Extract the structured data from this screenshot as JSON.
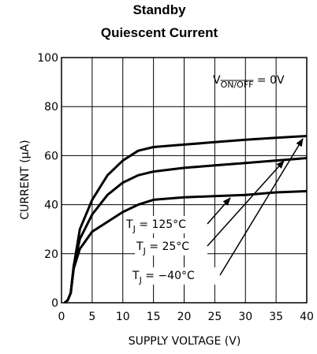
{
  "chart_data": {
    "type": "line",
    "title": [
      "Standby",
      "Quiescent Current"
    ],
    "xlabel": "SUPPLY VOLTAGE (V)",
    "ylabel": "CURRENT (µA)",
    "x": [
      0.5,
      1,
      1.5,
      2,
      3,
      5,
      7.5,
      10,
      12.5,
      15,
      20,
      25,
      30,
      35,
      40
    ],
    "series": [
      {
        "color": "#000000",
        "values": [
          0,
          1,
          4,
          15,
          30,
          42,
          52,
          58,
          62,
          63.5,
          64.5,
          65.5,
          66.5,
          67.3,
          68
        ]
      },
      {
        "color": "#000000",
        "values": [
          0,
          1,
          4,
          15,
          26,
          36,
          44,
          49,
          52,
          53.5,
          55,
          56,
          57,
          58,
          59
        ]
      },
      {
        "color": "#000000",
        "values": [
          0,
          1,
          4,
          14,
          22,
          29,
          33,
          37,
          40,
          42,
          43,
          43.5,
          44,
          45,
          45.5
        ]
      }
    ],
    "xlim": [
      0,
      40
    ],
    "xticks": [
      0,
      5,
      10,
      15,
      20,
      25,
      30,
      35,
      40
    ],
    "ylim": [
      0,
      100
    ],
    "yticks": [
      0,
      20,
      40,
      60,
      80,
      100
    ],
    "grid": true,
    "condition": {
      "main": "V",
      "sub": "ON/OFF",
      "rest": " = 0V"
    },
    "annotations": [
      {
        "main": "T",
        "sub": "J",
        "rest": " = 125°C"
      },
      {
        "main": "T",
        "sub": "J",
        "rest": " = 25°C"
      },
      {
        "main": "T",
        "sub": "J",
        "rest": " = −40°C"
      }
    ]
  }
}
